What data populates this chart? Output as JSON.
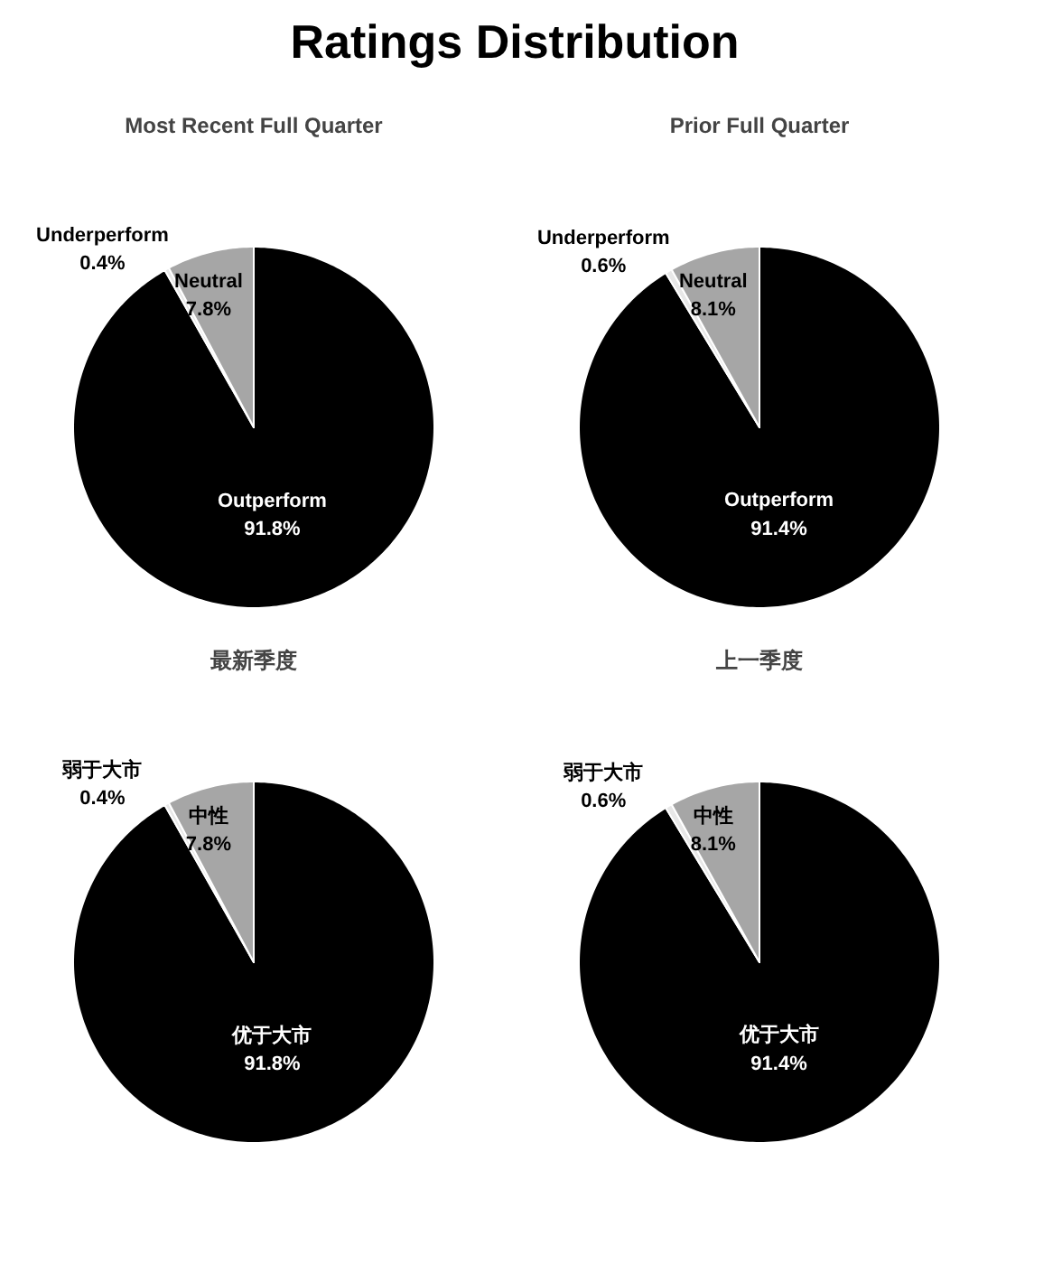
{
  "chart_data": [
    {
      "type": "pie",
      "title": "Most Recent Full Quarter",
      "categories": [
        "Outperform",
        "Underperform",
        "Neutral"
      ],
      "values": [
        91.8,
        0.4,
        7.8
      ],
      "value_labels": [
        "91.8%",
        "0.4%",
        "7.8%"
      ],
      "colors": [
        "#000000",
        "#e8e8e8",
        "#a6a6a6"
      ]
    },
    {
      "type": "pie",
      "title": "Prior Full Quarter",
      "categories": [
        "Outperform",
        "Underperform",
        "Neutral"
      ],
      "values": [
        91.4,
        0.6,
        8.1
      ],
      "value_labels": [
        "91.4%",
        "0.6%",
        "8.1%"
      ],
      "colors": [
        "#000000",
        "#e8e8e8",
        "#a6a6a6"
      ]
    },
    {
      "type": "pie",
      "title": "最新季度",
      "categories": [
        "优于大市",
        "弱于大市",
        "中性"
      ],
      "values": [
        91.8,
        0.4,
        7.8
      ],
      "value_labels": [
        "91.8%",
        "0.4%",
        "7.8%"
      ],
      "colors": [
        "#000000",
        "#e8e8e8",
        "#a6a6a6"
      ]
    },
    {
      "type": "pie",
      "title": "上一季度",
      "categories": [
        "优于大市",
        "弱于大市",
        "中性"
      ],
      "values": [
        91.4,
        0.6,
        8.1
      ],
      "value_labels": [
        "91.4%",
        "0.6%",
        "8.1%"
      ],
      "colors": [
        "#000000",
        "#e8e8e8",
        "#a6a6a6"
      ],
      "annotations": [
        "Ratings Distribution"
      ]
    }
  ]
}
